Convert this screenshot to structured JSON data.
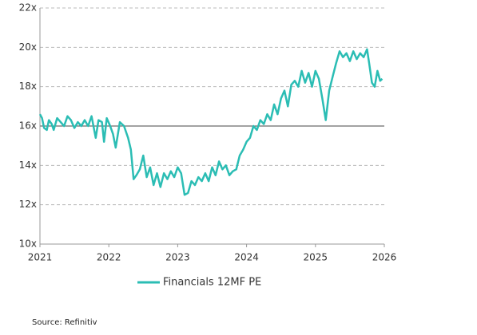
{
  "chart_data": {
    "type": "line",
    "x": [
      2021.0,
      2021.03,
      2021.06,
      2021.1,
      2021.13,
      2021.17,
      2021.2,
      2021.25,
      2021.3,
      2021.35,
      2021.4,
      2021.45,
      2021.5,
      2021.55,
      2021.6,
      2021.65,
      2021.7,
      2021.75,
      2021.81,
      2021.85,
      2021.9,
      2021.93,
      2021.97,
      2022.02,
      2022.06,
      2022.1,
      2022.16,
      2022.22,
      2022.28,
      2022.32,
      2022.36,
      2022.4,
      2022.45,
      2022.5,
      2022.55,
      2022.6,
      2022.65,
      2022.7,
      2022.75,
      2022.8,
      2022.85,
      2022.9,
      2022.95,
      2023.0,
      2023.05,
      2023.1,
      2023.15,
      2023.2,
      2023.25,
      2023.3,
      2023.35,
      2023.4,
      2023.45,
      2023.5,
      2023.55,
      2023.6,
      2023.65,
      2023.7,
      2023.75,
      2023.8,
      2023.85,
      2023.9,
      2023.95,
      2024.0,
      2024.05,
      2024.1,
      2024.15,
      2024.2,
      2024.25,
      2024.3,
      2024.35,
      2024.4,
      2024.45,
      2024.5,
      2024.55,
      2024.6,
      2024.65,
      2024.7,
      2024.75,
      2024.8,
      2024.85,
      2024.9,
      2024.95,
      2025.0,
      2025.05,
      2025.1,
      2025.15,
      2025.2,
      2025.25,
      2025.3,
      2025.35,
      2025.4,
      2025.45,
      2025.5,
      2025.55,
      2025.6,
      2025.65,
      2025.7,
      2025.75,
      2025.78,
      2025.82,
      2025.86,
      2025.9,
      2025.94,
      2025.97
    ],
    "series": [
      {
        "name": "Financials 12MF PE",
        "color": "#2bbdb4",
        "values": [
          16.6,
          16.4,
          15.9,
          15.8,
          16.3,
          16.1,
          15.8,
          16.4,
          16.2,
          16.0,
          16.5,
          16.3,
          15.9,
          16.2,
          16.0,
          16.3,
          16.0,
          16.5,
          15.4,
          16.3,
          16.2,
          15.2,
          16.4,
          16.0,
          15.6,
          14.9,
          16.2,
          16.0,
          15.4,
          14.8,
          13.3,
          13.5,
          13.8,
          14.5,
          13.4,
          13.9,
          13.0,
          13.6,
          12.9,
          13.6,
          13.3,
          13.7,
          13.4,
          13.9,
          13.6,
          12.5,
          12.6,
          13.2,
          13.0,
          13.4,
          13.2,
          13.6,
          13.2,
          13.9,
          13.5,
          14.2,
          13.8,
          14.0,
          13.5,
          13.7,
          13.8,
          14.5,
          14.8,
          15.2,
          15.4,
          16.0,
          15.8,
          16.3,
          16.1,
          16.6,
          16.3,
          17.1,
          16.6,
          17.4,
          17.8,
          17.0,
          18.1,
          18.3,
          18.0,
          18.8,
          18.2,
          18.7,
          18.0,
          18.8,
          18.4,
          17.4,
          16.3,
          17.8,
          18.5,
          19.2,
          19.8,
          19.5,
          19.7,
          19.3,
          19.8,
          19.4,
          19.7,
          19.5,
          19.9,
          19.2,
          18.2,
          18.0,
          18.8,
          18.3,
          18.4
        ]
      }
    ],
    "xlim": [
      2021,
      2026
    ],
    "xticks": [
      2021,
      2022,
      2023,
      2024,
      2025,
      2026
    ],
    "ylim": [
      10,
      22
    ],
    "yticks": [
      {
        "value": 10,
        "label": "10x"
      },
      {
        "value": 12,
        "label": "12x"
      },
      {
        "value": 14,
        "label": "14x"
      },
      {
        "value": 16,
        "label": "16x"
      },
      {
        "value": 18,
        "label": "18x"
      },
      {
        "value": 20,
        "label": "20x"
      },
      {
        "value": 22,
        "label": "22x"
      }
    ],
    "hline": 16,
    "grid": true,
    "source": "Source: Refinitiv"
  }
}
